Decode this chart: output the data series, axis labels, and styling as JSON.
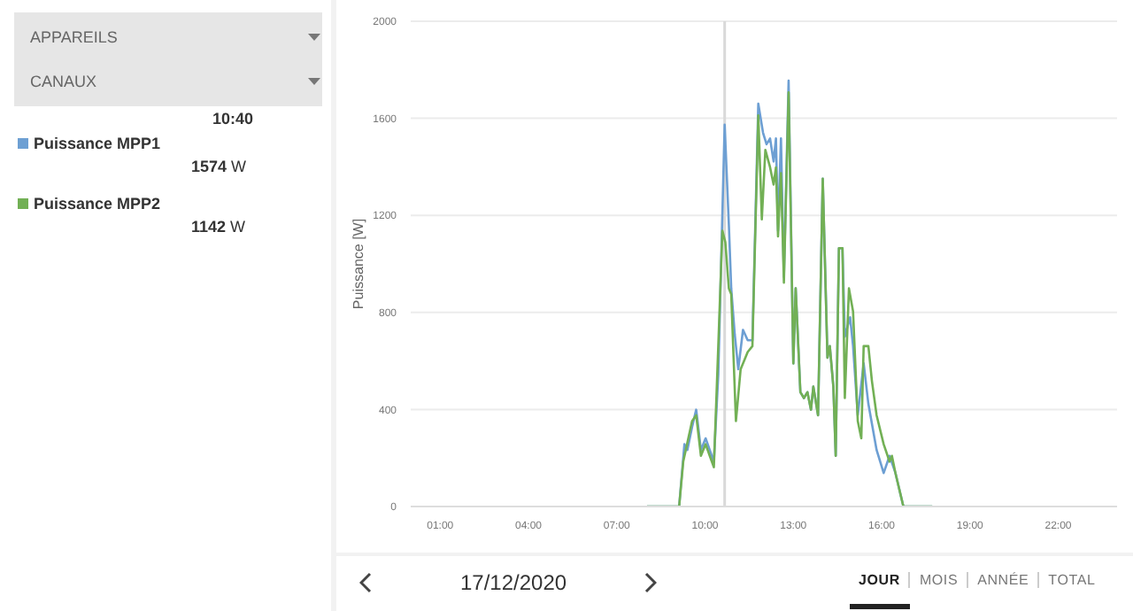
{
  "chart_data": {
    "type": "line",
    "ylabel": "Puissance [W]",
    "xlim": [
      0,
      24
    ],
    "xticks": [
      {
        "value": 1,
        "label": "01:00"
      },
      {
        "value": 4,
        "label": "04:00"
      },
      {
        "value": 7,
        "label": "07:00"
      },
      {
        "value": 10,
        "label": "10:00"
      },
      {
        "value": 13,
        "label": "13:00"
      },
      {
        "value": 16,
        "label": "16:00"
      },
      {
        "value": 19,
        "label": "19:00"
      },
      {
        "value": 22,
        "label": "22:00"
      }
    ],
    "ylim": [
      0,
      2000
    ],
    "yticks": [
      0,
      400,
      800,
      1200,
      1600,
      2000
    ],
    "grid": "y",
    "legend": "left",
    "ref_lines": [
      {
        "axis": "x",
        "value": 10.667,
        "label": null,
        "color": "#d9d9d9"
      }
    ],
    "series": [
      {
        "name": "Puissance MPP1",
        "color": "#6d9fd3",
        "x": [
          8.03,
          9.12,
          9.3,
          9.4,
          9.56,
          9.7,
          9.86,
          10.02,
          10.16,
          10.3,
          10.45,
          10.667,
          10.81,
          10.89,
          11.01,
          11.13,
          11.29,
          11.45,
          11.61,
          11.81,
          11.97,
          12.09,
          12.21,
          12.33,
          12.41,
          12.48,
          12.58,
          12.68,
          12.84,
          13.0,
          13.08,
          13.24,
          13.36,
          13.48,
          13.6,
          13.68,
          13.84,
          14.0,
          14.16,
          14.24,
          14.36,
          14.44,
          14.55,
          14.67,
          14.75,
          14.93,
          15.03,
          15.19,
          15.39,
          15.55,
          15.83,
          16.07,
          16.27,
          16.47,
          16.74,
          17.72
        ],
        "values": [
          0,
          0,
          257,
          233,
          328,
          399,
          233,
          281,
          233,
          185,
          542,
          1574,
          1160,
          899,
          709,
          566,
          728,
          685,
          685,
          1660,
          1541,
          1493,
          1517,
          1422,
          1517,
          1137,
          1517,
          946,
          1755,
          590,
          899,
          471,
          447,
          471,
          399,
          494,
          376,
          1351,
          613,
          661,
          494,
          209,
          1065,
          1065,
          700,
          780,
          661,
          376,
          590,
          423,
          233,
          138,
          209,
          138,
          0,
          0
        ]
      },
      {
        "name": "Puissance MPP2",
        "color": "#72b055",
        "x": [
          8.03,
          9.12,
          9.26,
          9.56,
          9.7,
          9.86,
          10.02,
          10.16,
          10.3,
          10.45,
          10.59,
          10.69,
          10.81,
          10.89,
          11.05,
          11.21,
          11.45,
          11.61,
          11.81,
          11.93,
          12.05,
          12.21,
          12.33,
          12.41,
          12.48,
          12.58,
          12.68,
          12.84,
          13.0,
          13.08,
          13.24,
          13.36,
          13.48,
          13.6,
          13.68,
          13.84,
          14.0,
          14.16,
          14.24,
          14.36,
          14.44,
          14.55,
          14.67,
          14.75,
          14.89,
          15.03,
          15.19,
          15.31,
          15.39,
          15.55,
          15.67,
          15.83,
          16.07,
          16.27,
          16.35,
          16.47,
          16.74,
          17.72
        ],
        "values": [
          0,
          0,
          185,
          352,
          376,
          209,
          257,
          209,
          162,
          661,
          1137,
          1089,
          899,
          875,
          352,
          566,
          637,
          661,
          1612,
          1184,
          1470,
          1398,
          1327,
          1398,
          1113,
          1374,
          923,
          1707,
          590,
          899,
          471,
          447,
          471,
          399,
          494,
          376,
          1351,
          613,
          661,
          494,
          209,
          1065,
          1065,
          447,
          899,
          804,
          352,
          281,
          661,
          661,
          518,
          376,
          257,
          185,
          209,
          138,
          0,
          0
        ]
      }
    ],
    "annotations": [
      "APPAREILS",
      "CANAUX",
      "10:40",
      "1574 W",
      "1142 W",
      "17/12/2020",
      "JOUR",
      "MOIS",
      "ANNÉE",
      "TOTAL"
    ]
  }
}
